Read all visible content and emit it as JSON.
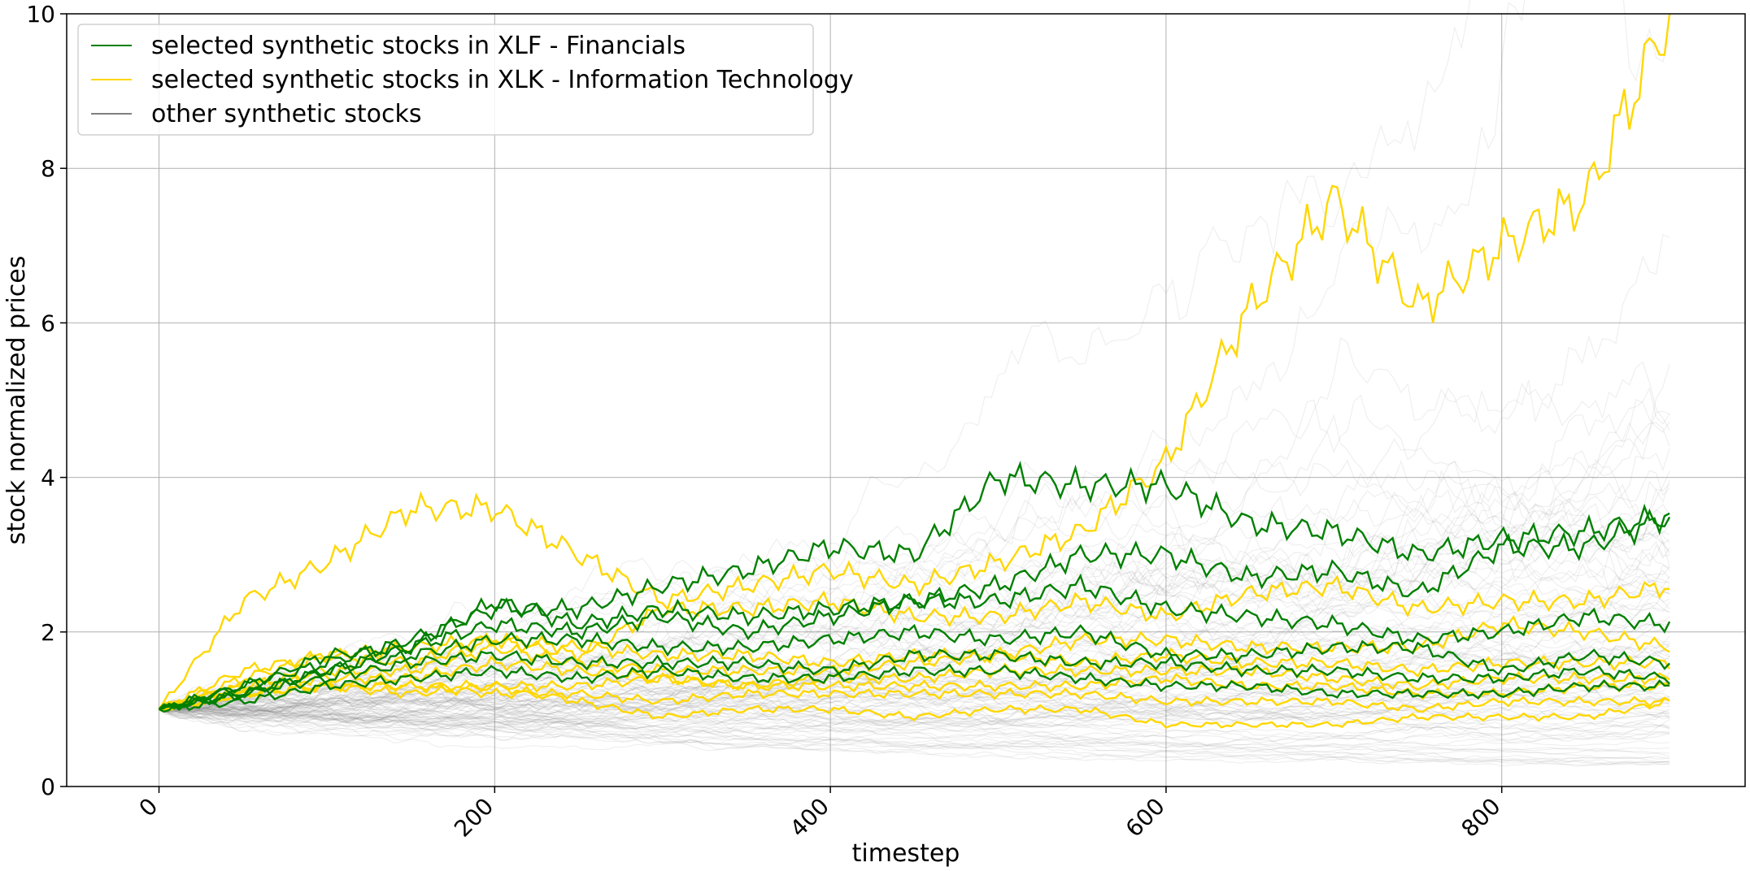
{
  "chart_data": {
    "type": "line",
    "title": "",
    "xlabel": "timestep",
    "ylabel": "stock normalized prices",
    "xlim": [
      -55,
      945
    ],
    "ylim": [
      0,
      10
    ],
    "xticks": [
      0,
      200,
      400,
      600,
      800
    ],
    "yticks": [
      0,
      2,
      4,
      6,
      8,
      10
    ],
    "grid": true,
    "legend_position": "top-left",
    "colors": {
      "financials": "#008000",
      "information_technology": "#FFD700",
      "other": "#808080",
      "grid": "#b0b0b0"
    },
    "legend": [
      {
        "label": "selected synthetic stocks in XLF - Financials",
        "color": "#008000"
      },
      {
        "label": "selected synthetic stocks in XLK - Information Technology",
        "color": "#FFD700"
      },
      {
        "label": "other synthetic stocks",
        "color": "#808080"
      }
    ],
    "x": [
      0,
      50,
      100,
      150,
      200,
      250,
      300,
      350,
      400,
      450,
      500,
      550,
      600,
      650,
      700,
      750,
      800,
      850,
      900
    ],
    "series": [
      {
        "group": "financials",
        "values": [
          1.0,
          1.3,
          1.6,
          1.9,
          2.3,
          2.3,
          2.6,
          2.8,
          3.1,
          3.0,
          4.0,
          3.9,
          3.9,
          3.4,
          3.3,
          3.0,
          3.2,
          3.3,
          3.5
        ]
      },
      {
        "group": "financials",
        "values": [
          1.0,
          1.2,
          1.5,
          1.8,
          2.4,
          2.1,
          2.3,
          2.2,
          2.3,
          2.4,
          2.6,
          3.0,
          3.0,
          2.7,
          2.8,
          2.5,
          3.1,
          3.1,
          3.5
        ]
      },
      {
        "group": "financials",
        "values": [
          1.0,
          1.3,
          1.7,
          1.8,
          2.1,
          2.0,
          2.2,
          2.0,
          2.2,
          2.4,
          2.4,
          2.6,
          2.3,
          2.2,
          2.1,
          1.9,
          2.0,
          2.2,
          2.1
        ]
      },
      {
        "group": "financials",
        "values": [
          1.0,
          1.2,
          1.5,
          1.7,
          1.9,
          1.9,
          1.8,
          1.8,
          1.9,
          2.0,
          1.9,
          2.0,
          1.7,
          1.7,
          1.8,
          1.8,
          1.5,
          1.7,
          1.6
        ]
      },
      {
        "group": "financials",
        "values": [
          1.0,
          1.2,
          1.4,
          1.6,
          1.7,
          1.6,
          1.6,
          1.6,
          1.5,
          1.7,
          1.7,
          1.6,
          1.6,
          1.5,
          1.5,
          1.4,
          1.4,
          1.5,
          1.4
        ]
      },
      {
        "group": "financials",
        "values": [
          1.0,
          1.1,
          1.3,
          1.4,
          1.5,
          1.4,
          1.5,
          1.4,
          1.4,
          1.5,
          1.5,
          1.4,
          1.3,
          1.3,
          1.2,
          1.2,
          1.2,
          1.3,
          1.3
        ]
      },
      {
        "group": "information_technology",
        "values": [
          1.0,
          2.4,
          2.9,
          3.6,
          3.6,
          3.0,
          2.4,
          2.6,
          2.8,
          2.6,
          2.9,
          3.3,
          4.2,
          6.2,
          7.6,
          6.2,
          7.0,
          7.6,
          10.0
        ]
      },
      {
        "group": "information_technology",
        "values": [
          1.0,
          1.5,
          1.7,
          1.8,
          1.9,
          1.7,
          2.3,
          2.3,
          2.4,
          2.2,
          2.2,
          2.4,
          2.2,
          2.5,
          2.6,
          2.3,
          2.4,
          2.4,
          2.6
        ]
      },
      {
        "group": "information_technology",
        "values": [
          1.0,
          1.4,
          1.7,
          1.6,
          1.9,
          1.8,
          1.7,
          1.7,
          1.6,
          1.7,
          1.7,
          1.9,
          1.9,
          1.8,
          1.8,
          1.8,
          2.1,
          2.0,
          1.8
        ]
      },
      {
        "group": "information_technology",
        "values": [
          1.0,
          1.3,
          1.5,
          1.5,
          1.8,
          1.6,
          1.5,
          1.5,
          1.5,
          1.6,
          1.7,
          1.6,
          1.7,
          1.6,
          1.6,
          1.5,
          1.6,
          1.6,
          1.6
        ]
      },
      {
        "group": "information_technology",
        "values": [
          1.0,
          1.3,
          1.4,
          1.4,
          1.6,
          1.5,
          1.4,
          1.3,
          1.4,
          1.4,
          1.5,
          1.5,
          1.5,
          1.5,
          1.4,
          1.3,
          1.4,
          1.4,
          1.4
        ]
      },
      {
        "group": "information_technology",
        "values": [
          1.0,
          1.2,
          1.3,
          1.3,
          1.3,
          1.3,
          1.4,
          1.3,
          1.3,
          1.3,
          1.3,
          1.3,
          1.4,
          1.3,
          1.3,
          1.2,
          1.2,
          1.3,
          1.3
        ]
      },
      {
        "group": "information_technology",
        "values": [
          1.0,
          1.2,
          1.3,
          1.3,
          1.2,
          1.2,
          1.1,
          1.2,
          1.2,
          1.2,
          1.2,
          1.2,
          1.1,
          1.1,
          1.1,
          1.0,
          1.1,
          1.1,
          1.1
        ]
      },
      {
        "group": "information_technology",
        "values": [
          1.0,
          1.2,
          1.3,
          1.2,
          1.3,
          1.1,
          0.9,
          1.0,
          1.0,
          0.9,
          1.0,
          1.0,
          0.8,
          0.8,
          0.8,
          0.9,
          0.9,
          0.9,
          1.1
        ]
      }
    ]
  }
}
